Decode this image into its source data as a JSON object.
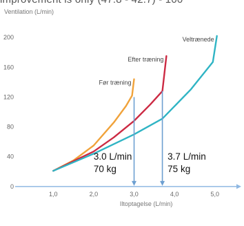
{
  "top_text": "improvement is only (47.8 - 42.7) - 100",
  "chart_data": {
    "type": "line",
    "ylabel": "Ventilation (L/min)",
    "xlabel": "Iltoptagelse (L/min)",
    "xlim": [
      0.5,
      5.55
    ],
    "ylim": [
      -2,
      215
    ],
    "x_ticks": [
      1.0,
      2.0,
      3.0,
      4.0,
      5.0
    ],
    "x_tick_labels": [
      "1,0",
      "2,0",
      "3,0",
      "4,0",
      "5,0"
    ],
    "y_ticks": [
      0,
      40,
      80,
      120,
      160,
      200
    ],
    "y_tick_labels": [
      "0",
      "40",
      "80",
      "120",
      "160",
      "200"
    ],
    "grid": false,
    "series": [
      {
        "name": "Før træning",
        "color": "#f0a23a",
        "points": [
          [
            1.0,
            21
          ],
          [
            1.5,
            35
          ],
          [
            2.0,
            55
          ],
          [
            2.5,
            86
          ],
          [
            2.8,
            108
          ],
          [
            2.95,
            122
          ],
          [
            3.0,
            144
          ]
        ]
      },
      {
        "name": "Efter træning",
        "color": "#cc2a43",
        "points": [
          [
            1.0,
            21
          ],
          [
            2.0,
            47
          ],
          [
            2.5,
            66
          ],
          [
            3.0,
            88
          ],
          [
            3.4,
            110
          ],
          [
            3.7,
            128
          ],
          [
            3.8,
            175
          ]
        ]
      },
      {
        "name": "Veltrænede",
        "color": "#2fb4c4",
        "points": [
          [
            1.0,
            21
          ],
          [
            2.0,
            44
          ],
          [
            3.0,
            70
          ],
          [
            3.7,
            91
          ],
          [
            4.4,
            130
          ],
          [
            4.95,
            167
          ],
          [
            5.05,
            202
          ]
        ]
      }
    ],
    "markers": [
      {
        "x": 3.0,
        "y_top": 120,
        "color": "#6d9fd1"
      },
      {
        "x": 3.7,
        "y_top": 128,
        "color": "#6d9fd1"
      }
    ],
    "annotations": [
      {
        "lines": [
          "3.0 L/min",
          "70 kg"
        ],
        "x": 2.0,
        "y": 36
      },
      {
        "lines": [
          "3.7 L/min",
          "75 kg"
        ],
        "x": 3.83,
        "y": 36
      }
    ]
  }
}
